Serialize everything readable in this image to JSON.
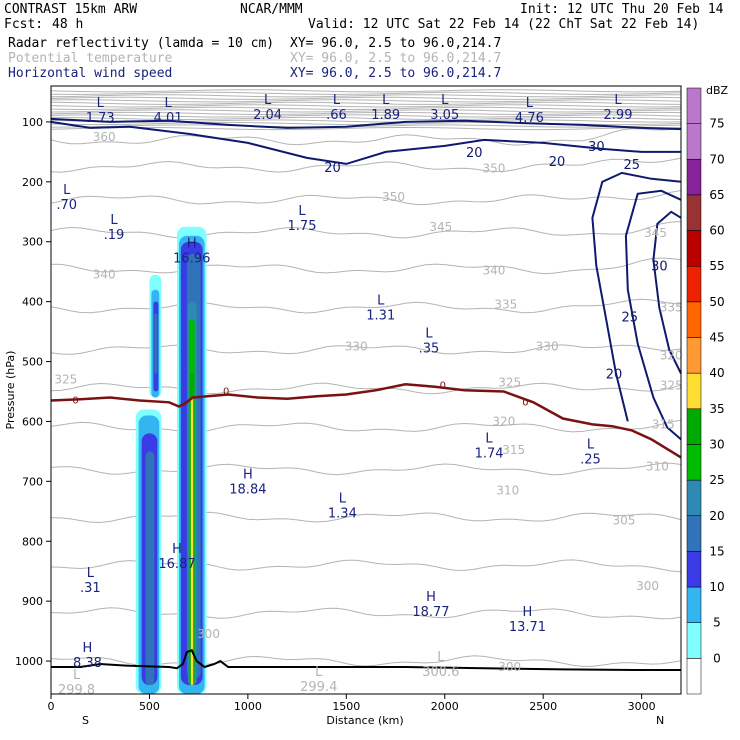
{
  "header": {
    "model": "CONTRAST 15km ARW",
    "org": "NCAR/MMM",
    "init": "Init: 12 UTC Thu 20 Feb 14",
    "fcst_label": "Fcst:",
    "fcst_value": "48 h",
    "valid": "Valid: 12 UTC Sat 22 Feb 14 (22 ChT Sat 22 Feb 14)"
  },
  "fields": [
    {
      "name": "Radar reflectivity (lamda = 10 cm)",
      "xy": "XY=  96.0,  2.5 to  96.0,214.7",
      "color": "#000000"
    },
    {
      "name": "Potential temperature",
      "xy": "XY=  96.0,  2.5 to  96.0,214.7",
      "color": "#b4b4b4"
    },
    {
      "name": "Horizontal wind speed",
      "xy": "XY=  96.0,  2.5 to  96.0,214.7",
      "color": "#1a237e"
    }
  ],
  "colors": {
    "theta": "#b4b4b4",
    "wind": "#0d1a6e",
    "freezing": "#7a1212",
    "terrain": "#000000",
    "text": "#000000",
    "label_blue": "#1a237e"
  },
  "chart_data": {
    "type": "cross-section",
    "xlabel": "Distance (km)",
    "ylabel": "Pressure (hPa)",
    "xlim": [
      0,
      3200
    ],
    "ylim": [
      1055,
      40
    ],
    "x_ticks": [
      0,
      500,
      1000,
      1500,
      2000,
      2500,
      3000
    ],
    "y_ticks": [
      100,
      200,
      300,
      400,
      500,
      600,
      700,
      800,
      900,
      1000
    ],
    "left_endpoint": "S",
    "right_endpoint": "N",
    "colorbar": {
      "title": "dBZ",
      "labels": [
        "0",
        "5",
        "10",
        "15",
        "20",
        "25",
        "30",
        "35",
        "40",
        "45",
        "50",
        "55",
        "60",
        "65",
        "70",
        "75"
      ],
      "colors": [
        "#ffffff",
        "#80ffff",
        "#33b5ef",
        "#3a3ae6",
        "#3173b8",
        "#2e8ab5",
        "#00bb00",
        "#00aa00",
        "#ffdd33",
        "#ff9933",
        "#ff6600",
        "#ee2200",
        "#bb0000",
        "#993333",
        "#882299",
        "#bb77cc"
      ]
    },
    "theta_labels": [
      {
        "x": 270,
        "p": 125,
        "text": "360"
      },
      {
        "x": 1740,
        "p": 225,
        "text": "350"
      },
      {
        "x": 2250,
        "p": 178,
        "text": "350"
      },
      {
        "x": 1980,
        "p": 275,
        "text": "345"
      },
      {
        "x": 3070,
        "p": 285,
        "text": "345"
      },
      {
        "x": 270,
        "p": 355,
        "text": "340"
      },
      {
        "x": 2250,
        "p": 348,
        "text": "340"
      },
      {
        "x": 2310,
        "p": 405,
        "text": "335"
      },
      {
        "x": 3150,
        "p": 410,
        "text": "335"
      },
      {
        "x": 1550,
        "p": 475,
        "text": "330"
      },
      {
        "x": 2520,
        "p": 475,
        "text": "330"
      },
      {
        "x": 3150,
        "p": 490,
        "text": "320"
      },
      {
        "x": 75,
        "p": 530,
        "text": "325"
      },
      {
        "x": 2330,
        "p": 535,
        "text": "325"
      },
      {
        "x": 3150,
        "p": 540,
        "text": "325"
      },
      {
        "x": 2300,
        "p": 600,
        "text": "320"
      },
      {
        "x": 2350,
        "p": 648,
        "text": "315"
      },
      {
        "x": 3110,
        "p": 605,
        "text": "315"
      },
      {
        "x": 3080,
        "p": 675,
        "text": "310"
      },
      {
        "x": 2320,
        "p": 715,
        "text": "310"
      },
      {
        "x": 2910,
        "p": 765,
        "text": "305"
      },
      {
        "x": 3030,
        "p": 875,
        "text": "300"
      },
      {
        "x": 800,
        "p": 955,
        "text": "300"
      },
      {
        "x": 2330,
        "p": 1010,
        "text": "300"
      }
    ],
    "wind_labels": [
      {
        "x": 1430,
        "p": 175,
        "text": "20"
      },
      {
        "x": 2150,
        "p": 150,
        "text": "20"
      },
      {
        "x": 2570,
        "p": 165,
        "text": "20"
      },
      {
        "x": 2770,
        "p": 140,
        "text": "30"
      },
      {
        "x": 2950,
        "p": 170,
        "text": "25"
      },
      {
        "x": 3090,
        "p": 340,
        "text": "30"
      },
      {
        "x": 2940,
        "p": 425,
        "text": "25"
      },
      {
        "x": 2860,
        "p": 520,
        "text": "20"
      }
    ],
    "freezing_labels": [
      {
        "x": 125,
        "p": 565,
        "text": "0"
      },
      {
        "x": 890,
        "p": 550,
        "text": "0"
      },
      {
        "x": 1990,
        "p": 540,
        "text": "0"
      },
      {
        "x": 2410,
        "p": 568,
        "text": "0"
      }
    ],
    "extrema": [
      {
        "x": 250,
        "p": 75,
        "type": "L",
        "value": "1.73"
      },
      {
        "x": 595,
        "p": 75,
        "type": "L",
        "value": "4.01"
      },
      {
        "x": 1100,
        "p": 70,
        "type": "L",
        "value": "2.04"
      },
      {
        "x": 1450,
        "p": 70,
        "type": "L",
        "value": ".66"
      },
      {
        "x": 1700,
        "p": 70,
        "type": "L",
        "value": "1.89"
      },
      {
        "x": 2000,
        "p": 70,
        "type": "L",
        "value": "3.05"
      },
      {
        "x": 2430,
        "p": 75,
        "type": "L",
        "value": "4.76"
      },
      {
        "x": 2880,
        "p": 70,
        "type": "L",
        "value": "2.99"
      },
      {
        "x": 80,
        "p": 220,
        "type": "L",
        "value": ".70"
      },
      {
        "x": 320,
        "p": 270,
        "type": "L",
        "value": ".19"
      },
      {
        "x": 715,
        "p": 310,
        "type": "H",
        "value": "16.96"
      },
      {
        "x": 1275,
        "p": 255,
        "type": "L",
        "value": "1.75"
      },
      {
        "x": 1675,
        "p": 405,
        "type": "L",
        "value": "1.31"
      },
      {
        "x": 1920,
        "p": 460,
        "type": "L",
        "value": ".35"
      },
      {
        "x": 2225,
        "p": 635,
        "type": "L",
        "value": "1.74"
      },
      {
        "x": 2740,
        "p": 645,
        "type": "L",
        "value": ".25"
      },
      {
        "x": 1000,
        "p": 695,
        "type": "H",
        "value": "18.84"
      },
      {
        "x": 1480,
        "p": 735,
        "type": "L",
        "value": "1.34"
      },
      {
        "x": 640,
        "p": 820,
        "type": "H",
        "value": "16.87"
      },
      {
        "x": 200,
        "p": 860,
        "type": "L",
        "value": ".31"
      },
      {
        "x": 1930,
        "p": 900,
        "type": "H",
        "value": "18.77"
      },
      {
        "x": 2420,
        "p": 925,
        "type": "H",
        "value": "13.71"
      },
      {
        "x": 185,
        "p": 985,
        "type": "H",
        "value": "8.38"
      },
      {
        "x": 130,
        "p": 1030,
        "type": "L",
        "value": "299.8",
        "color": "#b4b4b4"
      },
      {
        "x": 1360,
        "p": 1025,
        "type": "L",
        "value": "299.4",
        "color": "#b4b4b4"
      },
      {
        "x": 1980,
        "p": 1000,
        "type": "L",
        "value": "300.6",
        "color": "#b4b4b4"
      }
    ],
    "reflectivity_columns": [
      {
        "x0": 430,
        "x1": 560,
        "ptop": 580,
        "levels": [
          [
            430,
            560,
            580,
            1055,
            5
          ],
          [
            445,
            550,
            590,
            1055,
            10
          ],
          [
            460,
            540,
            620,
            1040,
            15
          ],
          [
            480,
            525,
            650,
            1040,
            20
          ]
        ]
      },
      {
        "x0": 500,
        "x1": 560,
        "ptop": 355,
        "levels": [
          [
            500,
            560,
            355,
            560,
            5
          ],
          [
            510,
            550,
            380,
            560,
            10
          ],
          [
            520,
            545,
            400,
            550,
            15
          ],
          [
            525,
            540,
            420,
            520,
            20
          ]
        ]
      },
      {
        "x0": 640,
        "x1": 790,
        "ptop": 275,
        "levels": [
          [
            640,
            790,
            275,
            1055,
            5
          ],
          [
            650,
            780,
            290,
            1055,
            10
          ],
          [
            660,
            770,
            300,
            1040,
            15
          ],
          [
            690,
            760,
            320,
            1030,
            20
          ],
          [
            695,
            740,
            400,
            1040,
            25
          ],
          [
            700,
            730,
            430,
            1040,
            30
          ],
          [
            705,
            725,
            520,
            1040,
            35
          ],
          [
            710,
            722,
            560,
            1040,
            40
          ]
        ]
      }
    ],
    "terrain": [
      [
        0,
        1010
      ],
      [
        150,
        1010
      ],
      [
        250,
        1005
      ],
      [
        400,
        1008
      ],
      [
        600,
        1010
      ],
      [
        640,
        1012
      ],
      [
        670,
        1005
      ],
      [
        690,
        985
      ],
      [
        715,
        982
      ],
      [
        740,
        1000
      ],
      [
        780,
        1010
      ],
      [
        830,
        1005
      ],
      [
        860,
        1000
      ],
      [
        900,
        1010
      ],
      [
        1000,
        1010
      ],
      [
        1400,
        1010
      ],
      [
        1800,
        1010
      ],
      [
        2200,
        1012
      ],
      [
        2600,
        1014
      ],
      [
        3000,
        1015
      ],
      [
        3200,
        1015
      ]
    ],
    "freezing_level": [
      [
        0,
        565
      ],
      [
        150,
        563
      ],
      [
        300,
        560
      ],
      [
        450,
        565
      ],
      [
        600,
        568
      ],
      [
        650,
        575
      ],
      [
        680,
        570
      ],
      [
        720,
        560
      ],
      [
        900,
        555
      ],
      [
        1050,
        560
      ],
      [
        1200,
        562
      ],
      [
        1350,
        558
      ],
      [
        1500,
        555
      ],
      [
        1650,
        548
      ],
      [
        1800,
        538
      ],
      [
        1950,
        542
      ],
      [
        2100,
        548
      ],
      [
        2300,
        550
      ],
      [
        2450,
        568
      ],
      [
        2600,
        595
      ],
      [
        2750,
        605
      ],
      [
        2850,
        608
      ],
      [
        2950,
        615
      ],
      [
        3050,
        630
      ],
      [
        3150,
        650
      ],
      [
        3200,
        660
      ]
    ]
  },
  "footer": {
    "left": "S",
    "right": "N"
  }
}
